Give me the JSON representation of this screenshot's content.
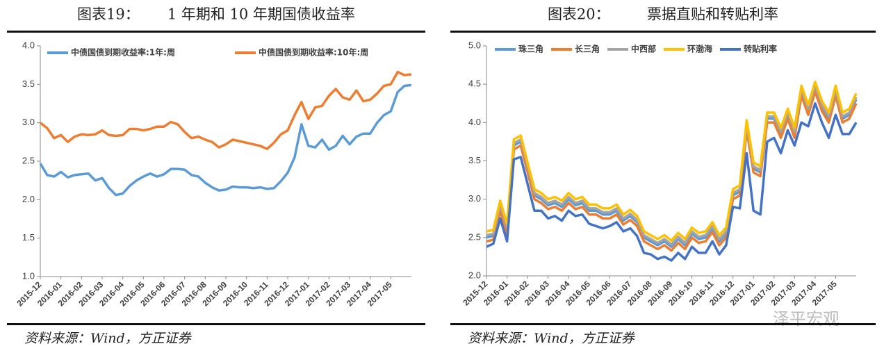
{
  "watermark": "泽平宏观",
  "chart_data": [
    {
      "type": "line",
      "title": "图表19：      1 年期和 10 年期国债收益率",
      "source": "资料来源：Wind，方正证券",
      "categories": [
        "2015-12",
        null,
        null,
        "2016-01",
        null,
        null,
        "2016-02",
        null,
        null,
        "2016-03",
        null,
        null,
        "2016-04",
        null,
        null,
        "2016-05",
        null,
        null,
        "2016-06",
        null,
        null,
        "2016-07",
        null,
        null,
        "2016-08",
        null,
        null,
        "2016-09",
        null,
        null,
        "2016-10",
        null,
        null,
        "2016-11",
        null,
        null,
        "2016-12",
        null,
        null,
        "2017-01",
        null,
        null,
        "2017-02",
        null,
        null,
        "2017-03",
        null,
        null,
        "2017-04",
        null,
        null,
        "2017-05",
        null,
        null,
        null
      ],
      "series": [
        {
          "name": "中债国债到期收益率:1年:周",
          "color": "#5b9bd5",
          "values": [
            2.47,
            2.32,
            2.3,
            2.36,
            2.29,
            2.32,
            2.33,
            2.34,
            2.25,
            2.28,
            2.15,
            2.06,
            2.08,
            2.18,
            2.25,
            2.3,
            2.34,
            2.3,
            2.33,
            2.4,
            2.4,
            2.39,
            2.32,
            2.3,
            2.22,
            2.16,
            2.12,
            2.13,
            2.17,
            2.16,
            2.16,
            2.15,
            2.16,
            2.14,
            2.15,
            2.24,
            2.35,
            2.55,
            2.98,
            2.7,
            2.68,
            2.78,
            2.65,
            2.7,
            2.83,
            2.72,
            2.82,
            2.86,
            2.86,
            3.0,
            3.1,
            3.15,
            3.4,
            3.48,
            3.49
          ]
        },
        {
          "name": "中债国债到期收益率:10年:周",
          "color": "#ed7d31",
          "values": [
            3.0,
            2.93,
            2.8,
            2.84,
            2.75,
            2.82,
            2.85,
            2.84,
            2.85,
            2.9,
            2.84,
            2.83,
            2.84,
            2.92,
            2.92,
            2.9,
            2.92,
            2.95,
            2.95,
            3.01,
            2.98,
            2.88,
            2.8,
            2.82,
            2.78,
            2.75,
            2.68,
            2.72,
            2.78,
            2.76,
            2.74,
            2.72,
            2.7,
            2.66,
            2.74,
            2.85,
            2.9,
            3.1,
            3.27,
            3.05,
            3.2,
            3.22,
            3.35,
            3.44,
            3.33,
            3.3,
            3.42,
            3.28,
            3.3,
            3.38,
            3.48,
            3.5,
            3.66,
            3.62,
            3.63
          ]
        }
      ],
      "ylim": [
        1,
        4
      ],
      "yticks": [
        {
          "value": 1,
          "label": "1.0"
        },
        {
          "value": 1.5,
          "label": "1.5"
        },
        {
          "value": 2,
          "label": "2.0"
        },
        {
          "value": 2.5,
          "label": "2.5"
        },
        {
          "value": 3,
          "label": "3.0"
        },
        {
          "value": 3.5,
          "label": "3.5"
        },
        {
          "value": 4,
          "label": "4.0"
        }
      ],
      "grid": false
    },
    {
      "type": "line",
      "title": "图表20：        票据直贴和转贴利率",
      "source": "资料来源：Wind，方正证券",
      "categories": [
        "2015-12",
        null,
        null,
        "2016-01",
        null,
        null,
        "2016-02",
        null,
        null,
        "2016-03",
        null,
        null,
        "2016-04",
        null,
        null,
        "2016-05",
        null,
        null,
        "2016-06",
        null,
        null,
        "2016-07",
        null,
        null,
        "2016-08",
        null,
        null,
        "2016-09",
        null,
        null,
        "2016-10",
        null,
        null,
        "2016-11",
        null,
        null,
        "2016-12",
        null,
        null,
        "2017-01",
        null,
        null,
        "2017-02",
        null,
        null,
        "2017-03",
        null,
        null,
        "2017-04",
        null,
        null,
        "2017-05",
        null,
        null,
        null
      ],
      "series": [
        {
          "name": "珠三角",
          "color": "#5b9bd5",
          "values": [
            2.5,
            2.52,
            2.9,
            2.6,
            3.7,
            3.75,
            3.4,
            3.05,
            3.0,
            2.92,
            2.95,
            2.9,
            3.0,
            2.92,
            2.95,
            2.85,
            2.85,
            2.8,
            2.8,
            2.85,
            2.72,
            2.78,
            2.7,
            2.5,
            2.45,
            2.4,
            2.45,
            2.38,
            2.48,
            2.4,
            2.55,
            2.48,
            2.5,
            2.62,
            2.45,
            2.55,
            3.05,
            3.1,
            3.95,
            3.4,
            3.35,
            4.05,
            4.05,
            3.85,
            4.1,
            3.85,
            4.4,
            4.15,
            4.45,
            4.2,
            4.05,
            4.4,
            4.05,
            4.1,
            4.3
          ]
        },
        {
          "name": "长三角",
          "color": "#ed7d31",
          "values": [
            2.45,
            2.47,
            2.85,
            2.55,
            3.65,
            3.7,
            3.35,
            3.0,
            2.95,
            2.87,
            2.9,
            2.85,
            2.95,
            2.87,
            2.9,
            2.8,
            2.8,
            2.75,
            2.75,
            2.8,
            2.67,
            2.73,
            2.65,
            2.45,
            2.4,
            2.35,
            2.4,
            2.33,
            2.43,
            2.35,
            2.5,
            2.43,
            2.45,
            2.57,
            2.4,
            2.5,
            3.0,
            3.05,
            3.9,
            3.35,
            3.3,
            4.0,
            4.0,
            3.8,
            4.05,
            3.8,
            4.35,
            4.1,
            4.4,
            4.15,
            4.0,
            4.35,
            4.0,
            4.05,
            4.25
          ]
        },
        {
          "name": "中西部",
          "color": "#a5a5a5",
          "values": [
            2.53,
            2.55,
            2.93,
            2.63,
            3.73,
            3.78,
            3.43,
            3.08,
            3.03,
            2.95,
            2.98,
            2.93,
            3.03,
            2.95,
            2.98,
            2.88,
            2.88,
            2.83,
            2.83,
            2.88,
            2.75,
            2.81,
            2.73,
            2.53,
            2.48,
            2.43,
            2.48,
            2.41,
            2.51,
            2.43,
            2.58,
            2.51,
            2.53,
            2.65,
            2.48,
            2.58,
            3.08,
            3.13,
            3.98,
            3.43,
            3.38,
            4.08,
            4.08,
            3.88,
            4.13,
            3.88,
            4.43,
            4.18,
            4.48,
            4.23,
            4.08,
            4.43,
            4.08,
            4.13,
            4.33
          ]
        },
        {
          "name": "环渤海",
          "color": "#ffc000",
          "values": [
            2.58,
            2.6,
            2.98,
            2.68,
            3.78,
            3.83,
            3.48,
            3.13,
            3.08,
            3.0,
            3.03,
            2.98,
            3.08,
            3.0,
            3.03,
            2.93,
            2.93,
            2.88,
            2.88,
            2.93,
            2.8,
            2.86,
            2.78,
            2.58,
            2.53,
            2.48,
            2.53,
            2.46,
            2.56,
            2.48,
            2.63,
            2.56,
            2.58,
            2.7,
            2.53,
            2.63,
            3.13,
            3.18,
            4.03,
            3.48,
            3.43,
            4.13,
            4.13,
            3.93,
            4.18,
            3.93,
            4.48,
            4.23,
            4.53,
            4.28,
            4.13,
            4.48,
            4.13,
            4.18,
            4.38
          ]
        },
        {
          "name": "转贴利率",
          "color": "#4472c4",
          "values": [
            2.38,
            2.42,
            2.75,
            2.45,
            3.52,
            3.55,
            3.2,
            2.85,
            2.85,
            2.75,
            2.78,
            2.72,
            2.85,
            2.78,
            2.8,
            2.68,
            2.65,
            2.62,
            2.65,
            2.7,
            2.58,
            2.62,
            2.52,
            2.3,
            2.28,
            2.22,
            2.25,
            2.2,
            2.3,
            2.22,
            2.38,
            2.3,
            2.3,
            2.45,
            2.28,
            2.4,
            2.9,
            2.88,
            3.6,
            2.85,
            2.8,
            3.75,
            3.8,
            3.6,
            3.9,
            3.7,
            4.0,
            3.95,
            4.25,
            4.0,
            3.8,
            4.1,
            3.85,
            3.85,
            4.0
          ]
        }
      ],
      "ylim": [
        2,
        5
      ],
      "yticks": [
        {
          "value": 2,
          "label": "2.0"
        },
        {
          "value": 2.5,
          "label": "2.5"
        },
        {
          "value": 3,
          "label": "3.0"
        },
        {
          "value": 3.5,
          "label": "3.5"
        },
        {
          "value": 4,
          "label": "4.0"
        },
        {
          "value": 4.5,
          "label": "4.5"
        },
        {
          "value": 5,
          "label": "5.0"
        }
      ],
      "grid": false
    }
  ]
}
